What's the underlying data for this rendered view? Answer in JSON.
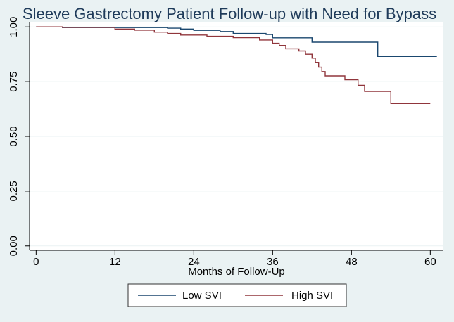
{
  "chart_data": {
    "type": "line",
    "title": "Sleeve Gastrectomy Patient Follow-up with Need for Bypass",
    "xlabel": "Months of Follow-Up",
    "ylabel": "",
    "xlim": [
      -1,
      62
    ],
    "ylim": [
      -0.02,
      1.02
    ],
    "xticks": [
      0,
      12,
      24,
      36,
      48,
      60
    ],
    "yticks": [
      0,
      0.25,
      0.5,
      0.75,
      1
    ],
    "ytick_labels": [
      "0.00",
      "0.25",
      "0.50",
      "0.75",
      "1.00"
    ],
    "grid": true,
    "legend_position": "bottom",
    "series": [
      {
        "name": "Low SVI",
        "color": "#1a476f",
        "x": [
          0,
          3,
          4,
          20,
          22,
          24,
          28,
          30,
          35,
          36,
          42,
          47,
          52,
          61
        ],
        "y": [
          1.0,
          1.0,
          0.997,
          0.994,
          0.99,
          0.984,
          0.979,
          0.97,
          0.965,
          0.95,
          0.93,
          0.93,
          0.865,
          0.865
        ]
      },
      {
        "name": "High SVI",
        "color": "#90353b",
        "x": [
          0,
          4,
          12,
          15,
          18,
          20,
          22,
          26,
          30,
          34,
          36,
          37,
          38,
          40,
          41,
          42,
          42.5,
          43,
          43.5,
          44,
          47,
          49,
          50,
          54,
          60
        ],
        "y": [
          1.0,
          0.998,
          0.99,
          0.985,
          0.976,
          0.97,
          0.963,
          0.957,
          0.951,
          0.94,
          0.925,
          0.915,
          0.9,
          0.89,
          0.875,
          0.857,
          0.838,
          0.816,
          0.796,
          0.776,
          0.758,
          0.733,
          0.705,
          0.65,
          0.65
        ]
      }
    ]
  }
}
